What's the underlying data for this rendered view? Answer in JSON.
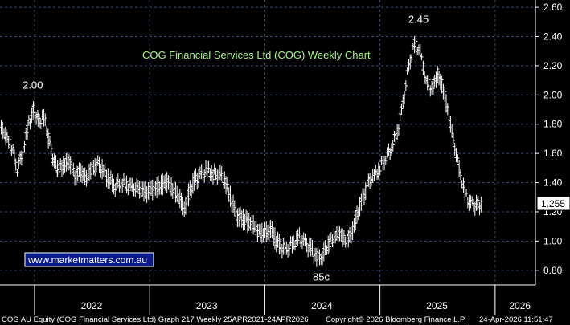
{
  "chart_data": {
    "type": "ohlc",
    "title": "COG Financial Services Ltd (COG) Weekly Chart",
    "watermark": "www.marketmatters.com.au",
    "y_ticks": [
      "0.80",
      "1.00",
      "1.20",
      "1.40",
      "1.60",
      "1.80",
      "2.00",
      "2.20",
      "2.40",
      "2.60"
    ],
    "ylim": [
      0.7,
      2.65
    ],
    "x_ticks": [
      "2022",
      "2023",
      "2024",
      "2025",
      "2026"
    ],
    "last_price": "1.255",
    "annotations": [
      {
        "text": "2.00",
        "x": 2021.98,
        "y": 2.0
      },
      {
        "text": "2.45",
        "x": 2025.33,
        "y": 2.45
      },
      {
        "text": "85c",
        "x": 2024.5,
        "y": 0.85
      }
    ],
    "footer_left": "COG AU Equity (COG Financial Services Ltd) Graph 217 Weekly 25APR2021-24APR2026",
    "footer_mid": "Copyright© 2026 Bloomberg Finance L.P.",
    "footer_right": "24-Apr-2026 11:51:47",
    "points": [
      [
        2021.71,
        1.78
      ],
      [
        2021.75,
        1.72
      ],
      [
        2021.8,
        1.65
      ],
      [
        2021.85,
        1.5
      ],
      [
        2021.9,
        1.62
      ],
      [
        2021.95,
        1.82
      ],
      [
        2021.99,
        1.9
      ],
      [
        2022.03,
        1.82
      ],
      [
        2022.08,
        1.85
      ],
      [
        2022.12,
        1.7
      ],
      [
        2022.16,
        1.55
      ],
      [
        2022.2,
        1.5
      ],
      [
        2022.25,
        1.52
      ],
      [
        2022.3,
        1.55
      ],
      [
        2022.35,
        1.45
      ],
      [
        2022.4,
        1.48
      ],
      [
        2022.45,
        1.42
      ],
      [
        2022.5,
        1.5
      ],
      [
        2022.55,
        1.52
      ],
      [
        2022.6,
        1.48
      ],
      [
        2022.65,
        1.42
      ],
      [
        2022.7,
        1.38
      ],
      [
        2022.75,
        1.4
      ],
      [
        2022.8,
        1.38
      ],
      [
        2022.85,
        1.36
      ],
      [
        2022.9,
        1.35
      ],
      [
        2022.95,
        1.33
      ],
      [
        2023.0,
        1.35
      ],
      [
        2023.05,
        1.36
      ],
      [
        2023.1,
        1.38
      ],
      [
        2023.15,
        1.4
      ],
      [
        2023.2,
        1.35
      ],
      [
        2023.25,
        1.3
      ],
      [
        2023.3,
        1.22
      ],
      [
        2023.35,
        1.35
      ],
      [
        2023.4,
        1.42
      ],
      [
        2023.45,
        1.45
      ],
      [
        2023.5,
        1.48
      ],
      [
        2023.55,
        1.45
      ],
      [
        2023.6,
        1.46
      ],
      [
        2023.65,
        1.42
      ],
      [
        2023.7,
        1.3
      ],
      [
        2023.75,
        1.18
      ],
      [
        2023.8,
        1.15
      ],
      [
        2023.85,
        1.13
      ],
      [
        2023.9,
        1.1
      ],
      [
        2023.95,
        1.05
      ],
      [
        2024.0,
        1.05
      ],
      [
        2024.05,
        1.08
      ],
      [
        2024.1,
        1.0
      ],
      [
        2024.15,
        0.96
      ],
      [
        2024.2,
        0.95
      ],
      [
        2024.25,
        0.98
      ],
      [
        2024.3,
        1.02
      ],
      [
        2024.35,
        0.98
      ],
      [
        2024.4,
        0.95
      ],
      [
        2024.45,
        0.9
      ],
      [
        2024.5,
        0.9
      ],
      [
        2024.55,
        0.98
      ],
      [
        2024.6,
        1.02
      ],
      [
        2024.65,
        1.05
      ],
      [
        2024.7,
        1.0
      ],
      [
        2024.75,
        1.05
      ],
      [
        2024.8,
        1.18
      ],
      [
        2024.85,
        1.3
      ],
      [
        2024.9,
        1.4
      ],
      [
        2024.95,
        1.45
      ],
      [
        2025.0,
        1.5
      ],
      [
        2025.05,
        1.58
      ],
      [
        2025.1,
        1.65
      ],
      [
        2025.15,
        1.75
      ],
      [
        2025.2,
        1.95
      ],
      [
        2025.25,
        2.2
      ],
      [
        2025.3,
        2.35
      ],
      [
        2025.35,
        2.3
      ],
      [
        2025.4,
        2.1
      ],
      [
        2025.45,
        2.05
      ],
      [
        2025.5,
        2.15
      ],
      [
        2025.55,
        2.05
      ],
      [
        2025.6,
        1.85
      ],
      [
        2025.65,
        1.65
      ],
      [
        2025.7,
        1.45
      ],
      [
        2025.75,
        1.3
      ],
      [
        2025.8,
        1.25
      ],
      [
        2025.84,
        1.255
      ]
    ]
  }
}
